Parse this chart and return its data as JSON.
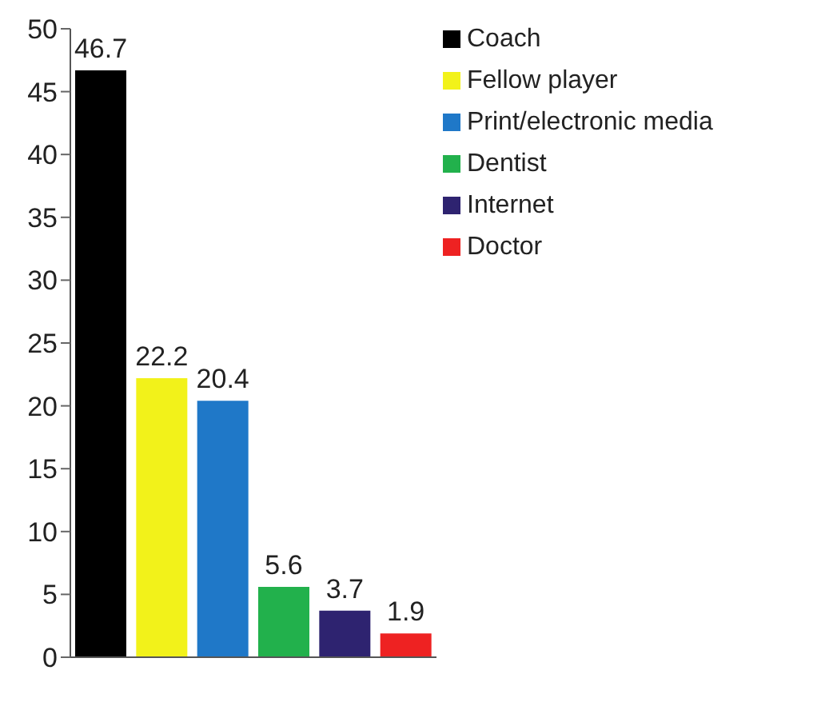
{
  "chart_data": {
    "type": "bar",
    "categories": [
      null,
      null,
      null,
      null,
      null,
      null
    ],
    "stacked": true,
    "series": [
      {
        "name": "Coach",
        "color": "#000000",
        "values": [
          46.7,
          null,
          null,
          null,
          null,
          null
        ]
      },
      {
        "name": "Fellow player",
        "color": "#f2f21a",
        "values": [
          null,
          22.2,
          null,
          null,
          null,
          null
        ]
      },
      {
        "name": "Print/electronic media",
        "color": "#1f78c8",
        "values": [
          null,
          null,
          20.4,
          null,
          null,
          null
        ]
      },
      {
        "name": "Dentist",
        "color": "#22b14c",
        "values": [
          null,
          null,
          null,
          5.6,
          null,
          null
        ]
      },
      {
        "name": "Internet",
        "color": "#2e2370",
        "values": [
          null,
          null,
          null,
          null,
          3.7,
          null
        ]
      },
      {
        "name": "Doctor",
        "color": "#ee2222",
        "values": [
          null,
          null,
          null,
          null,
          null,
          1.9
        ]
      }
    ],
    "ylim": [
      0,
      50
    ],
    "yticks": [
      0,
      5,
      10,
      15,
      20,
      25,
      30,
      35,
      40,
      45,
      50
    ],
    "data_labels": true,
    "legend": "top right"
  }
}
